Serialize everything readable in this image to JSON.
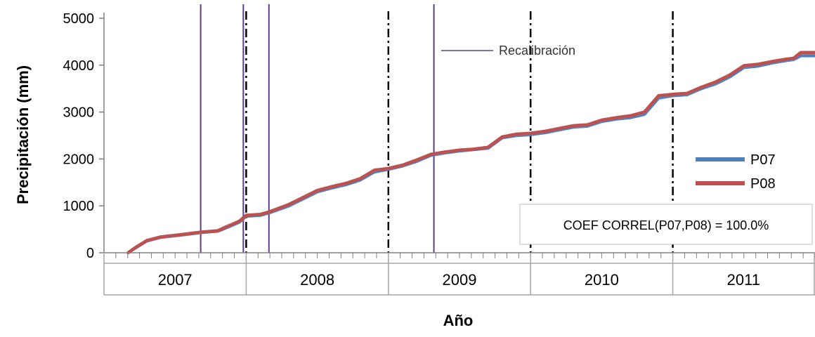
{
  "chart_data": {
    "type": "line",
    "ylabel": "Precipitación (mm)",
    "xlabel": "Año",
    "ylim": [
      0,
      5000
    ],
    "yticks": [
      0,
      1000,
      2000,
      3000,
      4000,
      5000
    ],
    "x_start": 2007.0,
    "x_end": 2012.0,
    "x_categories": [
      "2007",
      "2008",
      "2009",
      "2010",
      "2011"
    ],
    "year_boundaries": [
      2008.0,
      2009.0,
      2010.0,
      2011.0
    ],
    "recalibration": {
      "label": "Recalibración",
      "color": "#5b3f8c",
      "x": [
        2007.68,
        2007.98,
        2008.16,
        2009.32
      ]
    },
    "series": [
      {
        "name": "P07",
        "color": "#4f81bd",
        "x": [
          2007.17,
          2007.22,
          2007.3,
          2007.4,
          2007.55,
          2007.68,
          2007.8,
          2007.85,
          2007.95,
          2008.0,
          2008.1,
          2008.16,
          2008.3,
          2008.4,
          2008.5,
          2008.6,
          2008.7,
          2008.8,
          2008.9,
          2009.0,
          2009.1,
          2009.2,
          2009.3,
          2009.4,
          2009.5,
          2009.6,
          2009.7,
          2009.8,
          2009.9,
          2010.0,
          2010.1,
          2010.2,
          2010.3,
          2010.4,
          2010.5,
          2010.6,
          2010.7,
          2010.8,
          2010.9,
          2011.0,
          2011.1,
          2011.2,
          2011.3,
          2011.4,
          2011.5,
          2011.6,
          2011.7,
          2011.8,
          2011.85,
          2011.9,
          2012.0
        ],
        "y": [
          0,
          100,
          250,
          330,
          380,
          430,
          460,
          520,
          650,
          780,
          800,
          850,
          1000,
          1150,
          1300,
          1380,
          1450,
          1550,
          1720,
          1780,
          1850,
          1950,
          2080,
          2130,
          2170,
          2200,
          2230,
          2450,
          2500,
          2520,
          2560,
          2620,
          2680,
          2700,
          2800,
          2850,
          2880,
          2950,
          3300,
          3350,
          3370,
          3500,
          3600,
          3750,
          3950,
          3980,
          4050,
          4100,
          4120,
          4200,
          4200
        ]
      },
      {
        "name": "P08",
        "color": "#c0504d",
        "x": [
          2007.17,
          2007.22,
          2007.3,
          2007.4,
          2007.55,
          2007.68,
          2007.8,
          2007.85,
          2007.95,
          2008.0,
          2008.1,
          2008.16,
          2008.3,
          2008.4,
          2008.5,
          2008.6,
          2008.7,
          2008.8,
          2008.9,
          2009.0,
          2009.1,
          2009.2,
          2009.3,
          2009.4,
          2009.5,
          2009.6,
          2009.7,
          2009.8,
          2009.9,
          2010.0,
          2010.1,
          2010.2,
          2010.3,
          2010.4,
          2010.5,
          2010.6,
          2010.7,
          2010.8,
          2010.9,
          2011.0,
          2011.1,
          2011.2,
          2011.3,
          2011.4,
          2011.5,
          2011.6,
          2011.7,
          2011.8,
          2011.85,
          2011.9,
          2012.0
        ],
        "y": [
          0,
          110,
          260,
          340,
          390,
          440,
          470,
          540,
          670,
          800,
          820,
          870,
          1030,
          1180,
          1330,
          1410,
          1480,
          1580,
          1760,
          1800,
          1870,
          1980,
          2100,
          2150,
          2190,
          2210,
          2250,
          2470,
          2530,
          2550,
          2590,
          2650,
          2710,
          2730,
          2830,
          2880,
          2920,
          3000,
          3350,
          3380,
          3400,
          3530,
          3640,
          3790,
          3990,
          4020,
          4080,
          4130,
          4150,
          4270,
          4270
        ]
      }
    ],
    "annotation": "COEF CORREL(P07,P08) = 100.0%",
    "legend_position": "right"
  }
}
